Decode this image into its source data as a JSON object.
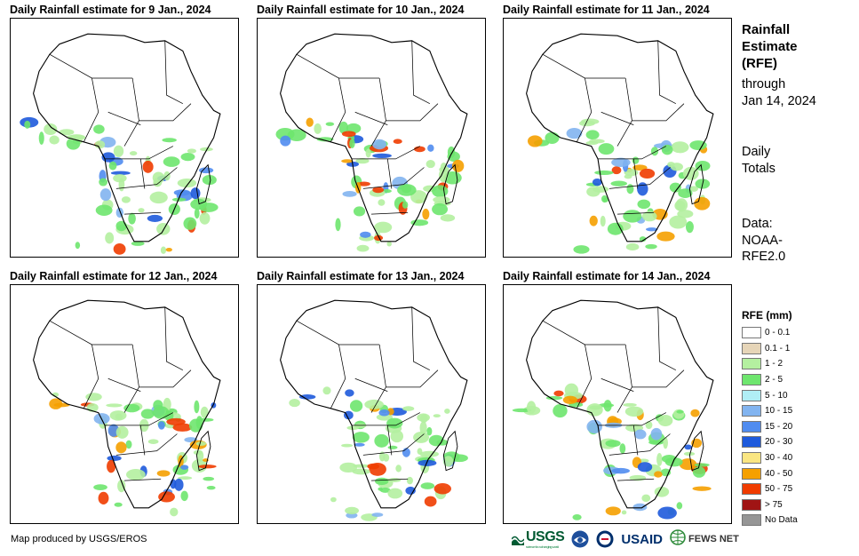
{
  "panels": [
    {
      "title": "Daily Rainfall estimate for 9 Jan., 2024"
    },
    {
      "title": "Daily Rainfall estimate for 10 Jan., 2024"
    },
    {
      "title": "Daily Rainfall estimate for 11 Jan., 2024"
    },
    {
      "title": "Daily Rainfall estimate for 12 Jan., 2024"
    },
    {
      "title": "Daily Rainfall estimate for 13 Jan., 2024"
    },
    {
      "title": "Daily Rainfall estimate for 14 Jan., 2024"
    }
  ],
  "side": {
    "heading_1": "Rainfall",
    "heading_2": "Estimate",
    "heading_3": "(RFE)",
    "through": "through",
    "date": "Jan 14, 2024",
    "daily": "Daily",
    "totals": "Totals",
    "data": "Data:",
    "source_1": "NOAA-",
    "source_2": "RFE2.0"
  },
  "legend": {
    "title": "RFE (mm)",
    "items": [
      {
        "label": "0 - 0.1",
        "color": "#ffffff"
      },
      {
        "label": "0.1 - 1",
        "color": "#e6d5b8"
      },
      {
        "label": "1 - 2",
        "color": "#b4f0a0"
      },
      {
        "label": "2 - 5",
        "color": "#6ee66e"
      },
      {
        "label": "5 - 10",
        "color": "#b0eef5"
      },
      {
        "label": "10 - 15",
        "color": "#82b4f0"
      },
      {
        "label": "15 - 20",
        "color": "#508cf0"
      },
      {
        "label": "20 - 30",
        "color": "#1e5adc"
      },
      {
        "label": "30 - 40",
        "color": "#fae682"
      },
      {
        "label": "40 - 50",
        "color": "#f5a000"
      },
      {
        "label": "50 - 75",
        "color": "#f03c00"
      },
      {
        "label": "> 75",
        "color": "#a01414"
      },
      {
        "label": "No Data",
        "color": "#969696"
      }
    ]
  },
  "footer": {
    "credit": "Map produced by USGS/EROS",
    "usgs": "USGS",
    "usgs_tagline": "science for a changing world",
    "usaid": "USAID",
    "fews": "FEWS NET"
  }
}
